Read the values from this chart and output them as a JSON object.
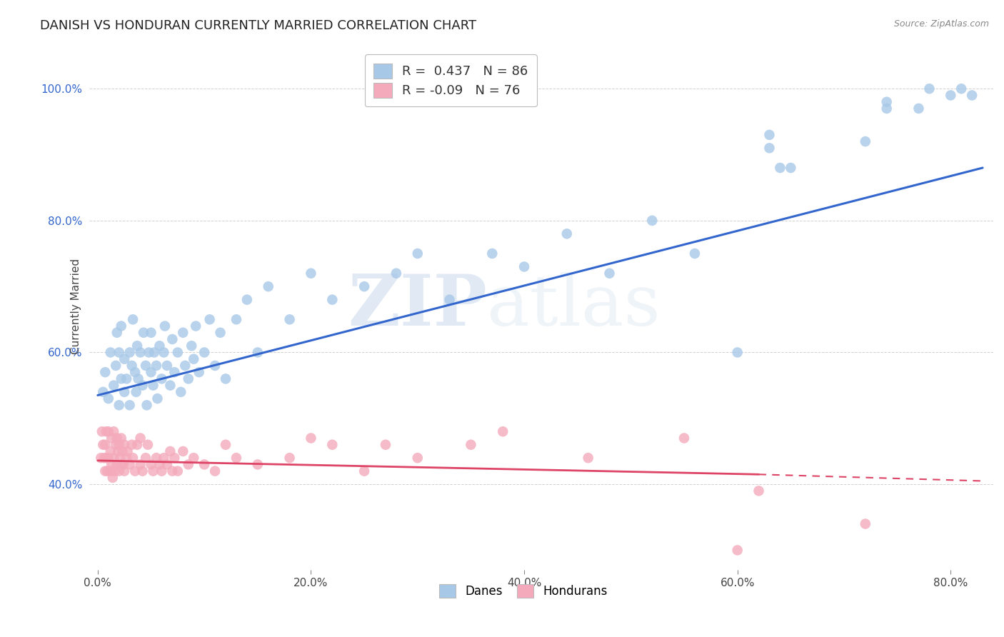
{
  "title": "DANISH VS HONDURAN CURRENTLY MARRIED CORRELATION CHART",
  "source": "Source: ZipAtlas.com",
  "ylabel": "Currently Married",
  "legend_label1": "Danes",
  "legend_label2": "Hondurans",
  "R_danes": 0.437,
  "N_danes": 86,
  "R_hondurans": -0.09,
  "N_hondurans": 76,
  "blue_color": "#A8C8E8",
  "pink_color": "#F4AABB",
  "blue_line_color": "#3366CC",
  "pink_line_color": "#DD4466",
  "watermark_zip": "ZIP",
  "watermark_atlas": "atlas",
  "xlim": [
    -0.008,
    0.84
  ],
  "ylim": [
    0.27,
    1.07
  ],
  "xtick_vals": [
    0.0,
    0.2,
    0.4,
    0.6,
    0.8
  ],
  "xtick_labels": [
    "0.0%",
    "20.0%",
    "40.0%",
    "60.0%",
    "80.0%"
  ],
  "ytick_vals": [
    0.4,
    0.6,
    0.8,
    1.0
  ],
  "ytick_labels": [
    "40.0%",
    "60.0%",
    "80.0%",
    "100.0%"
  ],
  "danes_x": [
    0.005,
    0.007,
    0.01,
    0.012,
    0.015,
    0.017,
    0.018,
    0.02,
    0.02,
    0.022,
    0.022,
    0.025,
    0.025,
    0.027,
    0.03,
    0.03,
    0.032,
    0.033,
    0.035,
    0.036,
    0.037,
    0.038,
    0.04,
    0.042,
    0.043,
    0.045,
    0.046,
    0.048,
    0.05,
    0.05,
    0.052,
    0.053,
    0.055,
    0.056,
    0.058,
    0.06,
    0.062,
    0.063,
    0.065,
    0.068,
    0.07,
    0.072,
    0.075,
    0.078,
    0.08,
    0.082,
    0.085,
    0.088,
    0.09,
    0.092,
    0.095,
    0.1,
    0.105,
    0.11,
    0.115,
    0.12,
    0.13,
    0.14,
    0.15,
    0.16,
    0.18,
    0.2,
    0.22,
    0.25,
    0.28,
    0.3,
    0.33,
    0.37,
    0.4,
    0.44,
    0.48,
    0.52,
    0.56,
    0.6,
    0.63,
    0.63,
    0.64,
    0.65,
    0.72,
    0.74,
    0.74,
    0.77,
    0.78,
    0.8,
    0.81,
    0.82
  ],
  "danes_y": [
    0.54,
    0.57,
    0.53,
    0.6,
    0.55,
    0.58,
    0.63,
    0.52,
    0.6,
    0.56,
    0.64,
    0.54,
    0.59,
    0.56,
    0.52,
    0.6,
    0.58,
    0.65,
    0.57,
    0.54,
    0.61,
    0.56,
    0.6,
    0.55,
    0.63,
    0.58,
    0.52,
    0.6,
    0.57,
    0.63,
    0.55,
    0.6,
    0.58,
    0.53,
    0.61,
    0.56,
    0.6,
    0.64,
    0.58,
    0.55,
    0.62,
    0.57,
    0.6,
    0.54,
    0.63,
    0.58,
    0.56,
    0.61,
    0.59,
    0.64,
    0.57,
    0.6,
    0.65,
    0.58,
    0.63,
    0.56,
    0.65,
    0.68,
    0.6,
    0.7,
    0.65,
    0.72,
    0.68,
    0.7,
    0.72,
    0.75,
    0.68,
    0.75,
    0.73,
    0.78,
    0.72,
    0.8,
    0.75,
    0.6,
    0.91,
    0.93,
    0.88,
    0.88,
    0.92,
    0.97,
    0.98,
    0.97,
    1.0,
    0.99,
    1.0,
    0.99
  ],
  "hondurans_x": [
    0.003,
    0.004,
    0.005,
    0.006,
    0.007,
    0.007,
    0.008,
    0.008,
    0.009,
    0.01,
    0.01,
    0.012,
    0.012,
    0.013,
    0.013,
    0.014,
    0.015,
    0.015,
    0.016,
    0.017,
    0.018,
    0.018,
    0.019,
    0.02,
    0.02,
    0.021,
    0.022,
    0.022,
    0.023,
    0.024,
    0.025,
    0.025,
    0.027,
    0.028,
    0.03,
    0.032,
    0.033,
    0.035,
    0.037,
    0.04,
    0.04,
    0.042,
    0.045,
    0.047,
    0.05,
    0.052,
    0.055,
    0.058,
    0.06,
    0.062,
    0.065,
    0.068,
    0.07,
    0.072,
    0.075,
    0.08,
    0.085,
    0.09,
    0.1,
    0.11,
    0.12,
    0.13,
    0.15,
    0.18,
    0.2,
    0.22,
    0.25,
    0.27,
    0.3,
    0.35,
    0.38,
    0.46,
    0.55,
    0.62,
    0.6,
    0.72
  ],
  "hondurans_y": [
    0.44,
    0.48,
    0.46,
    0.44,
    0.42,
    0.46,
    0.44,
    0.48,
    0.42,
    0.44,
    0.48,
    0.42,
    0.45,
    0.43,
    0.47,
    0.41,
    0.44,
    0.48,
    0.42,
    0.46,
    0.43,
    0.47,
    0.45,
    0.42,
    0.46,
    0.44,
    0.43,
    0.47,
    0.45,
    0.43,
    0.42,
    0.46,
    0.44,
    0.45,
    0.43,
    0.46,
    0.44,
    0.42,
    0.46,
    0.43,
    0.47,
    0.42,
    0.44,
    0.46,
    0.43,
    0.42,
    0.44,
    0.43,
    0.42,
    0.44,
    0.43,
    0.45,
    0.42,
    0.44,
    0.42,
    0.45,
    0.43,
    0.44,
    0.43,
    0.42,
    0.46,
    0.44,
    0.43,
    0.44,
    0.47,
    0.46,
    0.42,
    0.46,
    0.44,
    0.46,
    0.48,
    0.44,
    0.47,
    0.39,
    0.3,
    0.34
  ]
}
